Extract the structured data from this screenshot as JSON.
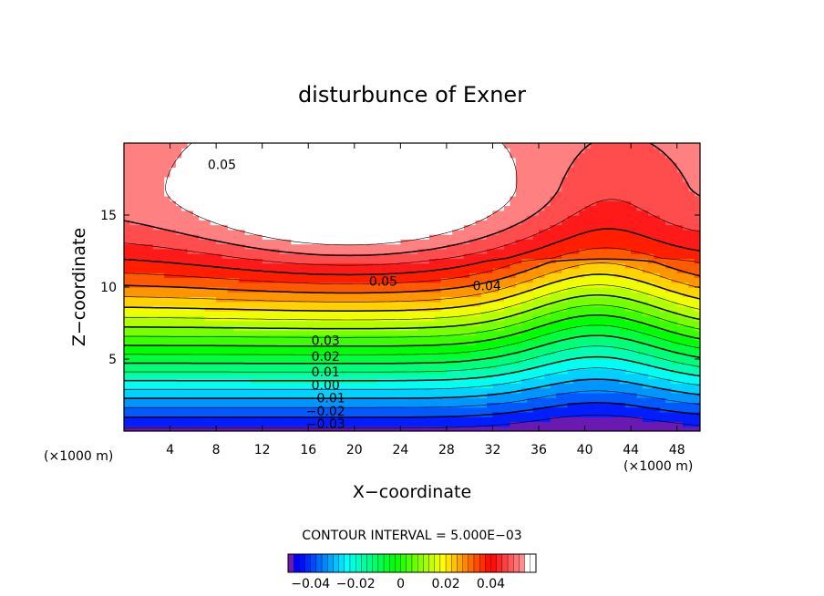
{
  "chart_data": {
    "type": "contour",
    "title": "disturbunce of Exner",
    "xlabel": "X−coordinate",
    "ylabel": "Z−coordinate",
    "x_unit": "(×1000 m)",
    "x_unit_right": "(×1000 m)",
    "xlim": [
      0,
      50
    ],
    "ylim": [
      0,
      20
    ],
    "x_ticks": [
      4,
      8,
      12,
      16,
      20,
      24,
      28,
      32,
      36,
      40,
      44,
      48
    ],
    "y_ticks": [
      5,
      10,
      15
    ],
    "contour_interval_text": "CONTOUR INTERVAL = 5.000E−03",
    "contour_interval": 0.005,
    "value_range": [
      -0.045,
      0.055
    ],
    "contour_labels": [
      {
        "text": "0.05",
        "x": 8.5,
        "y": 18.5
      },
      {
        "text": "0.05",
        "x": 22.5,
        "y": 10.4
      },
      {
        "text": "0.04",
        "x": 31.5,
        "y": 10.1
      },
      {
        "text": "0.03",
        "x": 17.5,
        "y": 6.3
      },
      {
        "text": "0.02",
        "x": 17.5,
        "y": 5.2
      },
      {
        "text": "0.01",
        "x": 17.5,
        "y": 4.1
      },
      {
        "text": "0.00",
        "x": 17.5,
        "y": 3.2
      },
      {
        "text": "−0.01",
        "x": 17.5,
        "y": 2.3
      },
      {
        "text": "−0.02",
        "x": 17.5,
        "y": 1.4
      },
      {
        "text": "−0.03",
        "x": 17.5,
        "y": 0.5
      }
    ],
    "colorbar": {
      "range": [
        -0.05,
        0.06
      ],
      "tick_values": [
        -0.04,
        -0.02,
        0,
        0.02,
        0.04
      ],
      "tick_labels": [
        "−0.04",
        "−0.02",
        "0",
        "0.02",
        "0.04"
      ]
    },
    "colors": {
      "max_region": "#ffffff",
      "high": "#ff0000",
      "low": "#0000ff",
      "min_region": "#6a1ab0"
    }
  }
}
